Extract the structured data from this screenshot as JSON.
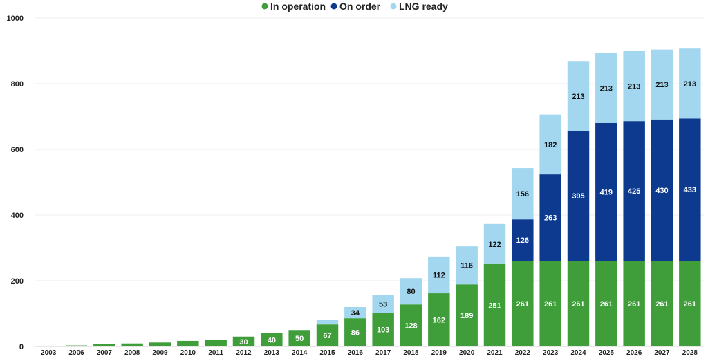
{
  "chart_data": {
    "type": "bar",
    "stacked": true,
    "title": "",
    "xlabel": "",
    "ylabel": "",
    "ylim": [
      0,
      1000
    ],
    "yticks": [
      0,
      200,
      400,
      600,
      800,
      1000
    ],
    "grid": true,
    "legend_position": "top-center",
    "categories": [
      "2003",
      "2006",
      "2007",
      "2008",
      "2009",
      "2010",
      "2011",
      "2012",
      "2013",
      "2014",
      "2015",
      "2016",
      "2017",
      "2018",
      "2019",
      "2020",
      "2021",
      "2022",
      "2023",
      "2024",
      "2025",
      "2026",
      "2027",
      "2028"
    ],
    "series": [
      {
        "name": "In operation",
        "color": "#3f9e3a",
        "label_color": "#ffffff",
        "values": [
          2,
          3,
          7,
          9,
          12,
          17,
          20,
          30,
          40,
          50,
          67,
          86,
          103,
          128,
          162,
          189,
          251,
          261,
          261,
          261,
          261,
          261,
          261,
          261
        ],
        "labels": [
          "",
          "",
          "",
          "",
          "",
          "",
          "",
          "30",
          "40",
          "50",
          "67",
          "86",
          "103",
          "128",
          "162",
          "189",
          "251",
          "261",
          "261",
          "261",
          "261",
          "261",
          "261",
          "261"
        ]
      },
      {
        "name": "On order",
        "color": "#0d3a8f",
        "label_color": "#ffffff",
        "values": [
          0,
          0,
          0,
          0,
          0,
          0,
          0,
          0,
          0,
          0,
          0,
          0,
          0,
          0,
          0,
          0,
          0,
          126,
          263,
          395,
          419,
          425,
          430,
          433
        ],
        "labels": [
          "",
          "",
          "",
          "",
          "",
          "",
          "",
          "",
          "",
          "",
          "",
          "",
          "",
          "",
          "",
          "",
          "",
          "126",
          "263",
          "395",
          "419",
          "425",
          "430",
          "433"
        ]
      },
      {
        "name": "LNG ready",
        "color": "#a3d7ef",
        "label_color": "#111111",
        "values": [
          0,
          0,
          0,
          0,
          0,
          0,
          0,
          0,
          0,
          0,
          13,
          34,
          53,
          80,
          112,
          116,
          122,
          156,
          182,
          213,
          213,
          213,
          213,
          213
        ],
        "labels": [
          "",
          "",
          "",
          "",
          "",
          "",
          "",
          "",
          "",
          "",
          "",
          "34",
          "53",
          "80",
          "112",
          "116",
          "122",
          "156",
          "182",
          "213",
          "213",
          "213",
          "213",
          "213"
        ]
      }
    ]
  }
}
